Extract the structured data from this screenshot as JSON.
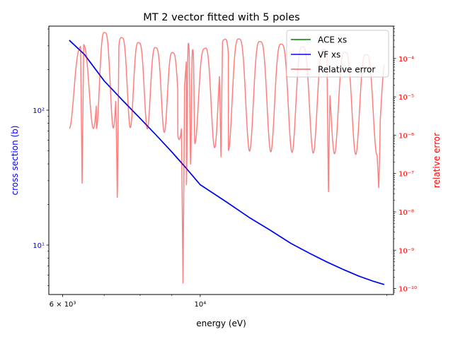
{
  "chart_data": {
    "type": "line",
    "title": "MT 2 vector fitted with 5 poles",
    "xlabel": "energy (eV)",
    "ylabel_left": "cross section (b)",
    "ylabel_right": "relative error",
    "x_scale": "log",
    "y_left_scale": "log",
    "y_right_scale": "log",
    "xlim": [
      5700,
      20500
    ],
    "ylim_left": [
      4.3,
      420
    ],
    "ylim_right": [
      7e-11,
      0.0007
    ],
    "x_ticks": [
      {
        "value": 6000,
        "label": "6 × 10³"
      },
      {
        "value": 10000,
        "label": "10⁴"
      }
    ],
    "y_left_ticks": [
      {
        "value": 10,
        "label": "10¹"
      },
      {
        "value": 100,
        "label": "10²"
      }
    ],
    "y_right_ticks": [
      {
        "value": 1e-10,
        "label": "10⁻¹⁰"
      },
      {
        "value": 1e-09,
        "label": "10⁻⁹"
      },
      {
        "value": 1e-08,
        "label": "10⁻⁸"
      },
      {
        "value": 1e-07,
        "label": "10⁻⁷"
      },
      {
        "value": 1e-06,
        "label": "10⁻⁶"
      },
      {
        "value": 1e-05,
        "label": "10⁻⁵"
      },
      {
        "value": 0.0001,
        "label": "10⁻⁴"
      }
    ],
    "legend": {
      "location": "top-right",
      "entries": [
        {
          "label": "ACE xs",
          "color": "#008000"
        },
        {
          "label": "VF xs",
          "color": "#0000ff"
        },
        {
          "label": "Relative error",
          "color": "#ff0000"
        }
      ]
    },
    "series": [
      {
        "name": "ACE xs",
        "axis": "left",
        "color": "#008000",
        "x": [
          6150,
          6500,
          7000,
          7500,
          8000,
          8500,
          9000,
          9500,
          10000,
          11000,
          12000,
          13000,
          14000,
          15000,
          16000,
          17000,
          18000,
          19000,
          19800
        ],
        "y": [
          330,
          260,
          165,
          118,
          87,
          65,
          49,
          37,
          28,
          21,
          16,
          12.8,
          10.3,
          8.7,
          7.5,
          6.6,
          5.9,
          5.4,
          5.1
        ]
      },
      {
        "name": "VF xs",
        "axis": "left",
        "color": "#0000ff",
        "x": [
          6150,
          6500,
          7000,
          7500,
          8000,
          8500,
          9000,
          9500,
          10000,
          11000,
          12000,
          13000,
          14000,
          15000,
          16000,
          17000,
          18000,
          19000,
          19800
        ],
        "y": [
          330,
          260,
          165,
          118,
          87,
          65,
          49,
          37,
          28,
          21,
          16,
          12.8,
          10.3,
          8.7,
          7.5,
          6.6,
          5.9,
          5.4,
          5.1
        ]
      },
      {
        "name": "Relative error",
        "axis": "right",
        "color": "#ff0000",
        "alpha": 0.5,
        "x_range": [
          6150,
          19800
        ],
        "upper_envelope": [
          {
            "x": 6150,
            "y": 0.0001
          },
          {
            "x": 6400,
            "y": 0.0002
          },
          {
            "x": 6800,
            "y": 0.00055
          },
          {
            "x": 9200,
            "y": 0.00013
          },
          {
            "x": 9500,
            "y": 0.0003
          },
          {
            "x": 9800,
            "y": 0.00014
          },
          {
            "x": 11100,
            "y": 0.00035
          },
          {
            "x": 19800,
            "y": 0.00011
          }
        ],
        "lower_envelope": [
          {
            "x": 6150,
            "y": 1.5e-06
          },
          {
            "x": 6800,
            "y": 1.5e-06
          },
          {
            "x": 8000,
            "y": 1.6e-06
          },
          {
            "x": 9200,
            "y": 1e-06
          },
          {
            "x": 9500,
            "y": 5e-08
          },
          {
            "x": 9800,
            "y": 6e-07
          },
          {
            "x": 11100,
            "y": 4e-07
          },
          {
            "x": 19800,
            "y": 3e-07
          }
        ],
        "dips": [
          {
            "x": 6450,
            "y": 5e-08
          },
          {
            "x": 7350,
            "y": 2e-08
          },
          {
            "x": 9380,
            "y": 1.3e-10
          },
          {
            "x": 10800,
            "y": 2.5e-07
          },
          {
            "x": 16100,
            "y": 3e-08
          },
          {
            "x": 19400,
            "y": 4e-08
          }
        ]
      }
    ]
  }
}
